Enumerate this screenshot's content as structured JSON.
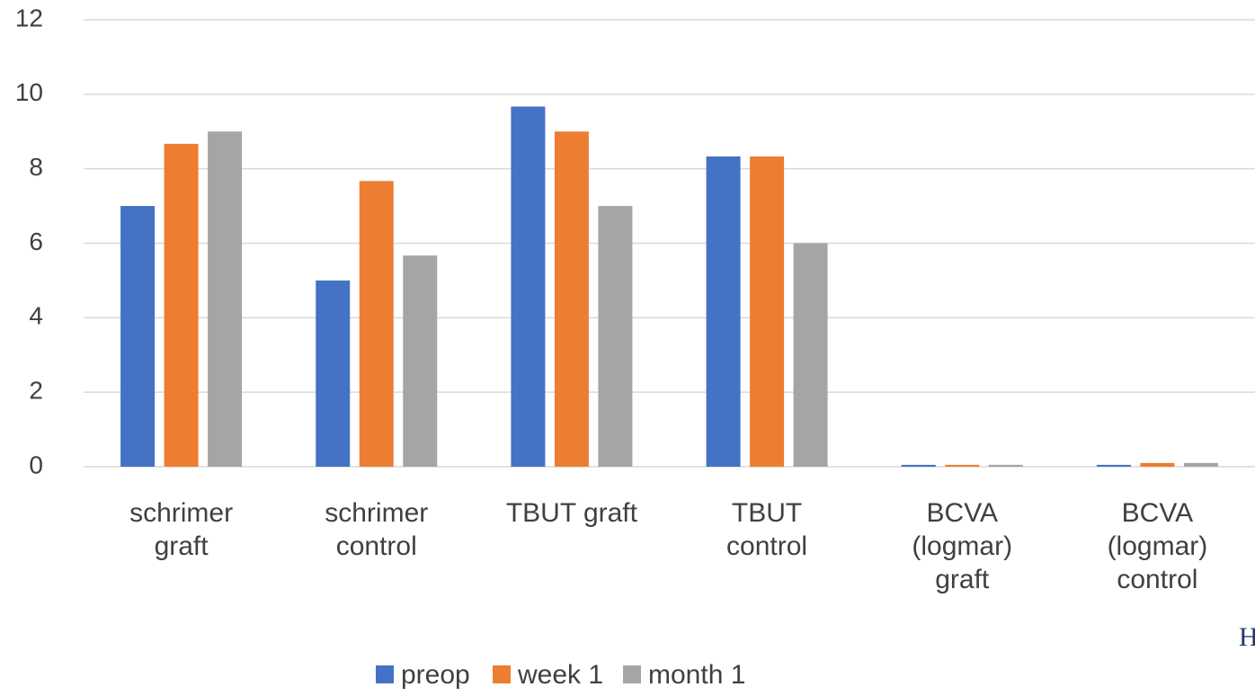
{
  "chart_data": {
    "type": "bar",
    "categories": [
      "schrimer\ngraft",
      "schrimer\ncontrol",
      "TBUT graft",
      "TBUT\ncontrol",
      "BCVA\n(logmar)\ngraft",
      "BCVA\n(logmar)\ncontrol"
    ],
    "series": [
      {
        "name": "preop",
        "color": "#4472c4",
        "values": [
          7,
          5,
          9.67,
          8.33,
          0.05,
          0.05
        ]
      },
      {
        "name": "week 1",
        "color": "#ed7d31",
        "values": [
          8.67,
          7.67,
          9,
          8.33,
          0.05,
          0.1
        ]
      },
      {
        "name": "month 1",
        "color": "#a5a5a5",
        "values": [
          9,
          5.67,
          7,
          6,
          0.05,
          0.1
        ]
      }
    ],
    "ylim": [
      0,
      12
    ],
    "yticks": [
      0,
      2,
      4,
      6,
      8,
      10,
      12
    ],
    "grid": true,
    "legend": "bottom",
    "annotation": "H"
  }
}
